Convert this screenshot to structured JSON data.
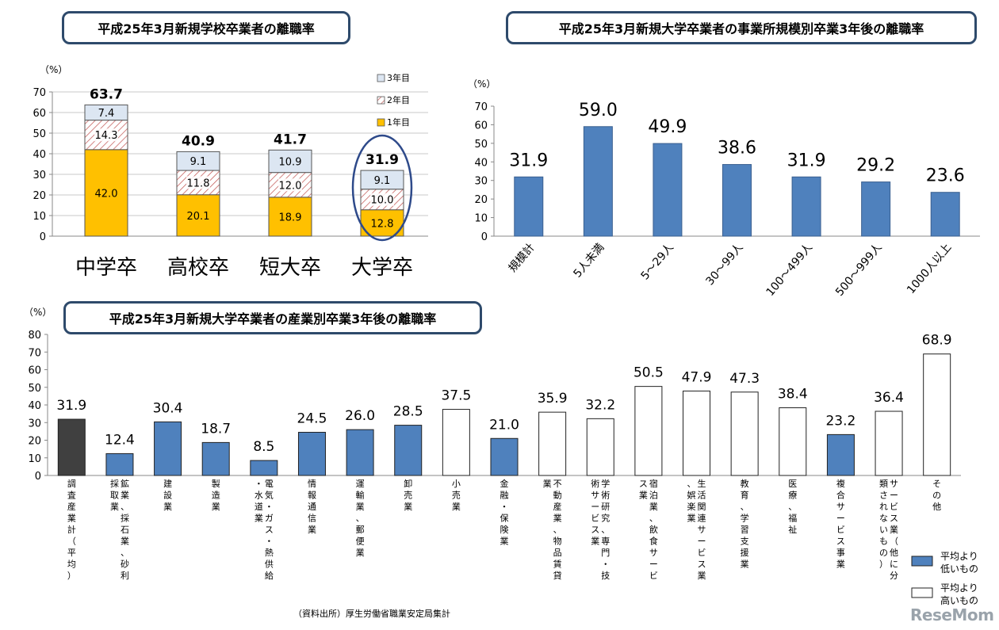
{
  "chart_data": [
    {
      "type": "bar",
      "stacked": true,
      "title": "平成25年3月新規学校卒業者の離職率",
      "ylabel": "（%）",
      "ylim": [
        0,
        70
      ],
      "yticks": [
        0,
        10,
        20,
        30,
        40,
        50,
        60,
        70
      ],
      "categories": [
        "中学卒",
        "高校卒",
        "短大卒",
        "大学卒"
      ],
      "series": [
        {
          "name": "1年目",
          "values": [
            42.0,
            20.1,
            18.9,
            12.8
          ],
          "value_labels": [
            "42.0",
            "20.1",
            "18.9",
            "12.8"
          ],
          "color": "#ffc000"
        },
        {
          "name": "2年目",
          "values": [
            14.3,
            11.8,
            12.0,
            10.0
          ],
          "value_labels": [
            "14.3",
            "11.8",
            "12.0",
            "10.0"
          ],
          "color": "#ffffff"
        },
        {
          "name": "3年目",
          "values": [
            7.4,
            9.1,
            10.9,
            9.1
          ],
          "value_labels": [
            "7.4",
            "9.1",
            "10.9",
            "9.1"
          ],
          "color": "#dce6f2"
        }
      ],
      "totals": [
        "63.7",
        "40.9",
        "41.7",
        "31.9"
      ],
      "legend": "top-right",
      "highlight_category": "大学卒"
    },
    {
      "type": "bar",
      "title": "平成25年3月新規大学卒業者の事業所規模別卒業3年後の離職率",
      "ylabel": "（%）",
      "ylim": [
        0,
        70
      ],
      "yticks": [
        0,
        10,
        20,
        30,
        40,
        50,
        60,
        70
      ],
      "categories": [
        "規模計",
        "5人未満",
        "5～29人",
        "30～99人",
        "100～499人",
        "500～999人",
        "1000人以上"
      ],
      "values": [
        31.9,
        59.0,
        49.9,
        38.6,
        31.9,
        29.2,
        23.6
      ],
      "value_labels": [
        "31.9",
        "59.0",
        "49.9",
        "38.6",
        "31.9",
        "29.2",
        "23.6"
      ],
      "color": "#4f81bd"
    },
    {
      "type": "bar",
      "title": "平成25年3月新規大学卒業者の産業別卒業3年後の離職率",
      "ylabel": "（%）",
      "ylim": [
        0,
        80
      ],
      "yticks": [
        0,
        10,
        20,
        30,
        40,
        50,
        60,
        70,
        80
      ],
      "categories": [
        "調査産業計（平均）",
        "鉱業、採石業、砂利採取業",
        "建設業",
        "製造業",
        "電気・ガス・熱供給・水道業",
        "情報通信業",
        "運輸業、郵便業",
        "卸売業",
        "小売業",
        "金融・保険業",
        "不動産業、物品賃貸業",
        "学術研究、専門・技術サービス業",
        "宿泊業、飲食サービス業",
        "生活関連サービス業、娯楽業",
        "教育、学習支援業",
        "医療、福祉",
        "複合サービス事業",
        "サービス業（他に分類されないもの）",
        "その他"
      ],
      "values": [
        31.9,
        12.4,
        30.4,
        18.7,
        8.5,
        24.5,
        26.0,
        28.5,
        37.5,
        21.0,
        35.9,
        32.2,
        50.5,
        47.9,
        47.3,
        38.4,
        23.2,
        36.4,
        68.9
      ],
      "value_labels": [
        "31.9",
        "12.4",
        "30.4",
        "18.7",
        "8.5",
        "24.5",
        "26.0",
        "28.5",
        "37.5",
        "21.0",
        "35.9",
        "32.2",
        "50.5",
        "47.9",
        "47.3",
        "38.4",
        "23.2",
        "36.4",
        "68.9"
      ],
      "bar_kind": [
        "avg",
        "low",
        "low",
        "low",
        "low",
        "low",
        "low",
        "low",
        "high",
        "low",
        "high",
        "high",
        "high",
        "high",
        "high",
        "high",
        "low",
        "high",
        "high"
      ],
      "legend": [
        {
          "key": "low",
          "label": "平均より低いもの",
          "color": "#4f81bd"
        },
        {
          "key": "high",
          "label": "平均より高いもの",
          "color": "#ffffff"
        }
      ],
      "colors": {
        "avg": "#404040",
        "low": "#4f81bd",
        "high": "#ffffff"
      }
    }
  ],
  "source_note": "（資料出所）厚生労働省職業安定局集計",
  "watermark": "ReseMom"
}
